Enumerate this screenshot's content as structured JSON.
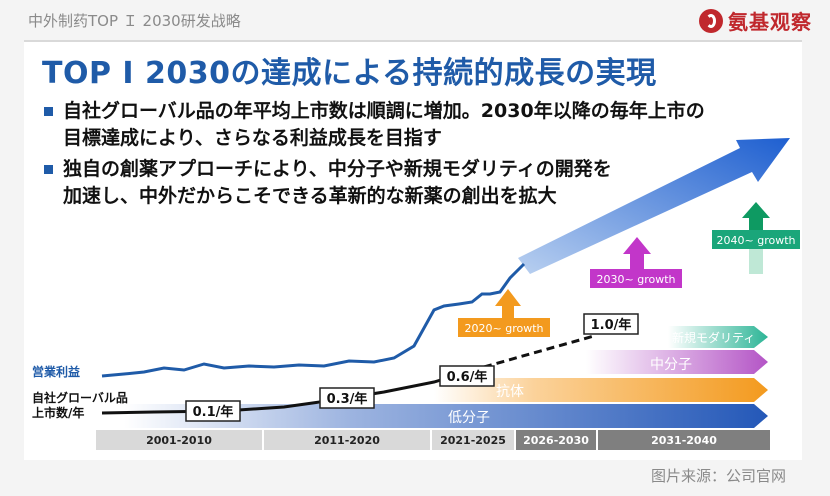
{
  "header": {
    "breadcrumb": "中外制药TOP Ｉ 2030研发战略",
    "logo_text": "氨基观察"
  },
  "slide": {
    "title": "TOP I 2030の達成による持続的成長の実現",
    "bullets": [
      {
        "lines": [
          "自社グローバル品の年平均上市数は順調に増加。2030年以降の毎年上市の",
          "目標達成により、さらなる利益成長を目指す"
        ]
      },
      {
        "lines": [
          "独自の創薬アプローチにより、中分子や新規モダリティの開発を",
          "加速し、中外だからこそできる革新的な新薬の創出を拡大"
        ]
      }
    ]
  },
  "chart_data": {
    "type": "line",
    "left_labels": {
      "profit": "営業利益",
      "launches_line1": "自社グローバル品",
      "launches_line2": "上市数/年"
    },
    "launch_rates": [
      "0.1/年",
      "0.3/年",
      "0.6/年",
      "1.0/年"
    ],
    "growth_labels": [
      "2020~ growth",
      "2030~ growth",
      "2040~ growth"
    ],
    "modalities": [
      "低分子",
      "抗体",
      "中分子",
      "新規モダリティ"
    ],
    "periods": [
      "2001-2010",
      "2011-2020",
      "2021-2025",
      "2026-2030",
      "2031-2040"
    ],
    "colors": {
      "profit": "#1f5ba8",
      "small_molecule": "#2458b8",
      "antibody": "#f39a1e",
      "middle_molecule": "#b455c6",
      "new_modality": "#2cb596",
      "g2020": "#f39a1e",
      "g2030": "#c236c9",
      "g2040": "#0e9a62"
    }
  },
  "footer": {
    "source": "图片来源：公司官网"
  }
}
